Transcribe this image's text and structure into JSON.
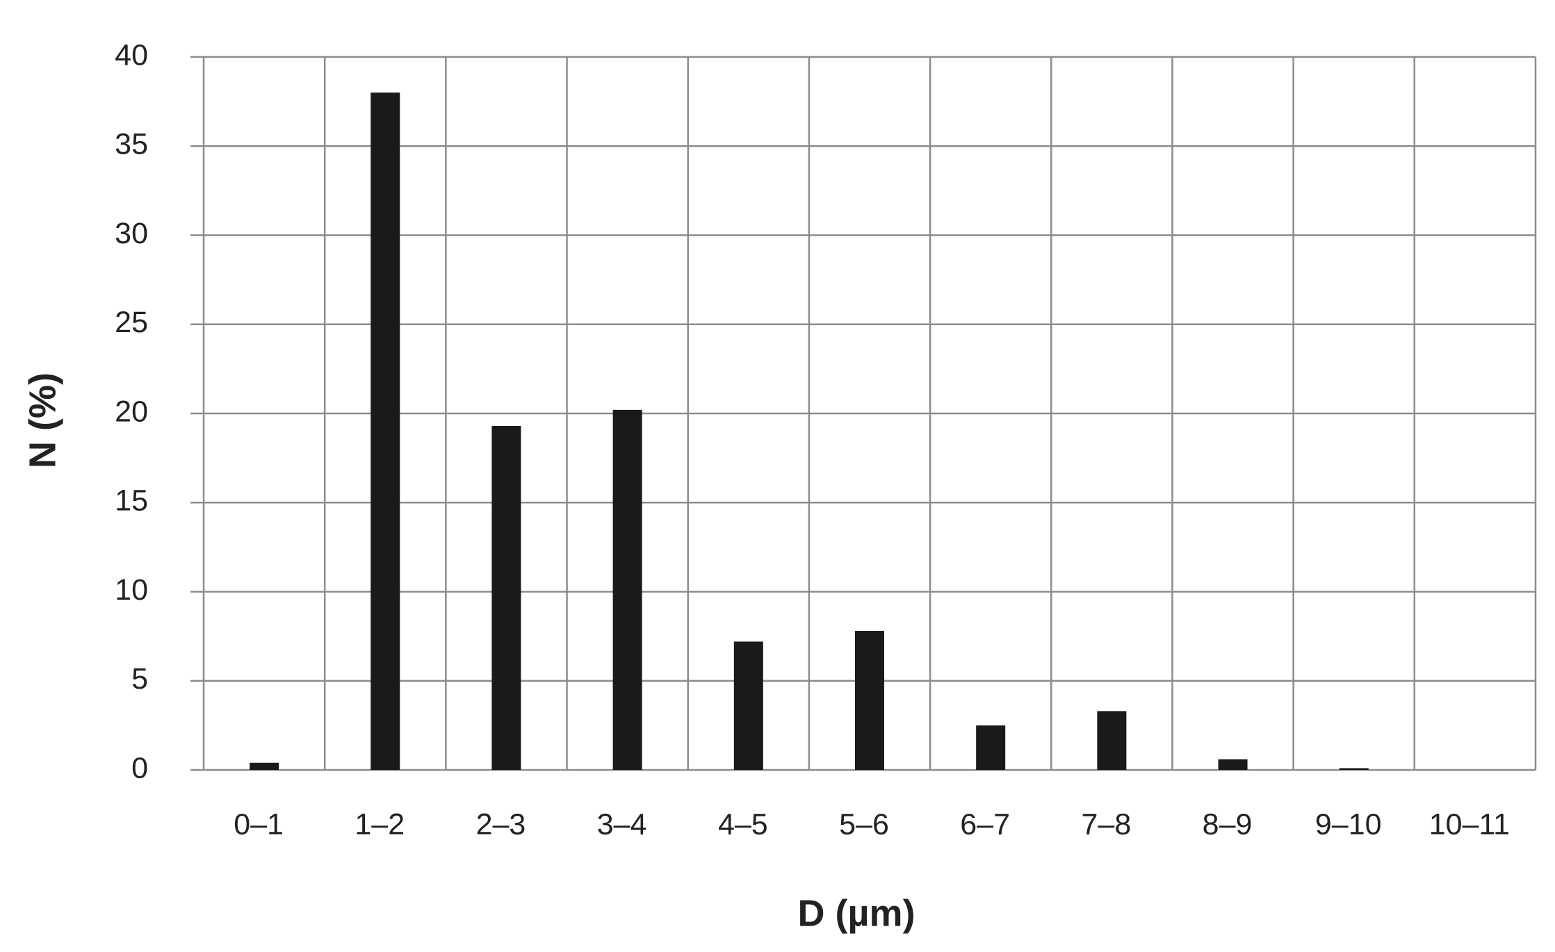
{
  "chart_data": {
    "type": "bar",
    "x_label": "D (µm)",
    "y_label": "N (%)",
    "categories": [
      "0–1",
      "1–2",
      "2–3",
      "3–4",
      "4–5",
      "5–6",
      "6–7",
      "7–8",
      "8–9",
      "9–10",
      "10–11"
    ],
    "values": [
      0.4,
      38,
      19.3,
      20.2,
      7.2,
      7.8,
      2.5,
      3.3,
      0.6,
      0.1,
      0
    ],
    "color": "#1a1a1a",
    "ylim": [
      0,
      40
    ],
    "yticks": [
      0,
      5,
      10,
      15,
      20,
      25,
      30,
      35,
      40
    ],
    "grid": true
  }
}
